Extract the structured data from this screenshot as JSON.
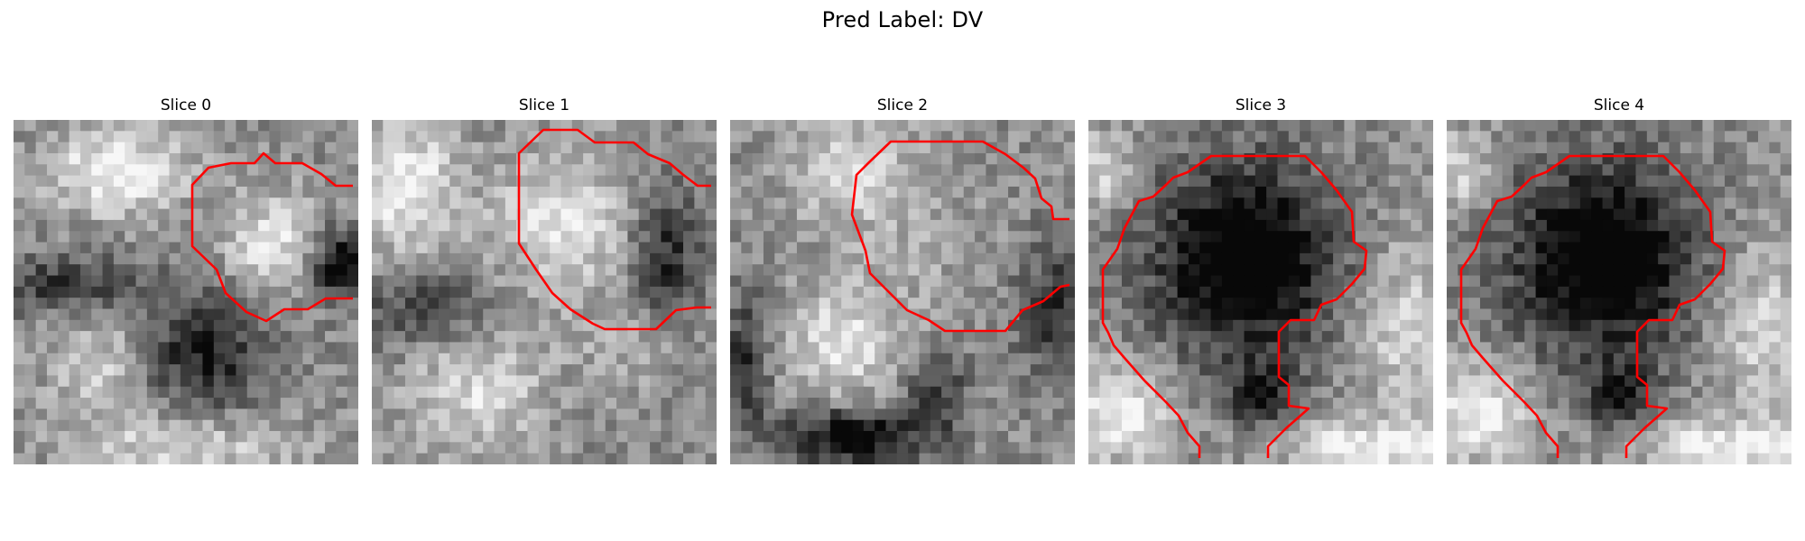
{
  "figure": {
    "suptitle": "Pred Label: DV",
    "overlay_color": "#ff0000",
    "panels": [
      {
        "title": "Slice 0"
      },
      {
        "title": "Slice 1"
      },
      {
        "title": "Slice 2"
      },
      {
        "title": "Slice 3"
      },
      {
        "title": "Slice 4"
      }
    ]
  }
}
